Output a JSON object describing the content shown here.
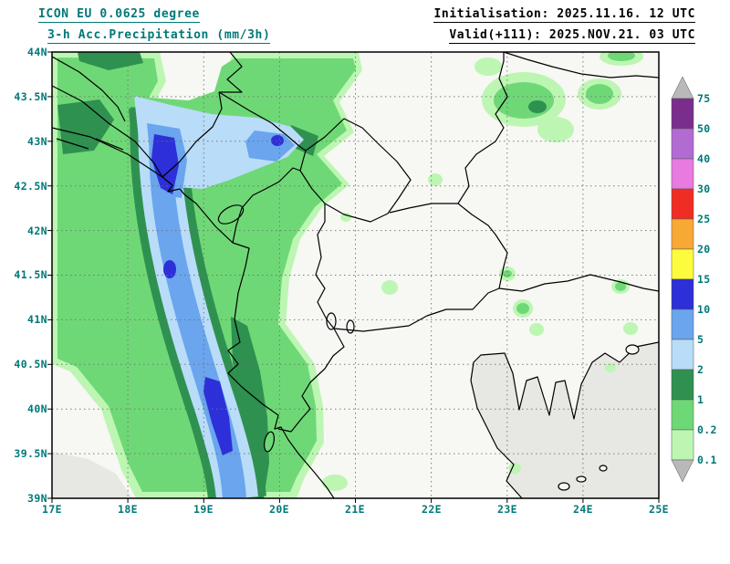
{
  "header": {
    "model_line": "ICON EU 0.0625 degree",
    "product_line": "3-h Acc.Precipitation (mm/3h)",
    "init_line": "Initialisation: 2025.11.16. 12 UTC",
    "valid_line": "Valid(+111): 2025.NOV.21. 03 UTC"
  },
  "map": {
    "x_ticks": [
      "17E",
      "18E",
      "19E",
      "20E",
      "21E",
      "22E",
      "23E",
      "24E",
      "25E"
    ],
    "y_ticks": [
      "44N",
      "43.5N",
      "43N",
      "42.5N",
      "42N",
      "41.5N",
      "41N",
      "40.5N",
      "40N",
      "39.5N",
      "39N"
    ]
  },
  "colorbar": {
    "unit_values": [
      "75",
      "50",
      "40",
      "30",
      "25",
      "20",
      "15",
      "10",
      "5",
      "2",
      "1",
      "0.2",
      "0.1"
    ],
    "segment_colors_top_to_bottom": [
      "#7b2d8e",
      "#b26bd3",
      "#e87ae0",
      "#ef2d24",
      "#f8a834",
      "#fdfb3d",
      "#2d2fd8",
      "#6aa5ee",
      "#b9dcf8",
      "#2f9150",
      "#6fd876",
      "#bdf6b3"
    ],
    "arrow_color": "#b9b9b9"
  },
  "palette": {
    "precip_01": "#bdf6b3",
    "precip_02": "#6fd876",
    "precip_1": "#2f9150",
    "precip_2": "#b9dcf8",
    "precip_5": "#6aa5ee",
    "precip_10": "#2d2fd8",
    "land": "#f7f7f4",
    "sea": "#e7e7e3",
    "grid": "#707070",
    "border": "#000000",
    "text_teal": "#007878",
    "text_black": "#000000"
  }
}
